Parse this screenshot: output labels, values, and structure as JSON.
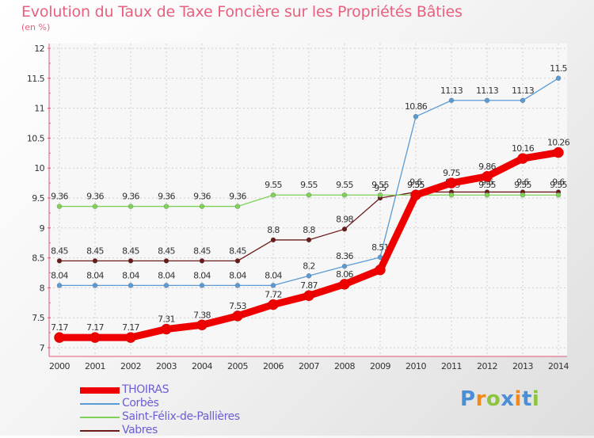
{
  "chart_data": {
    "type": "line",
    "title": "Evolution du Taux de Taxe Foncière sur les Propriétés Bâties",
    "subtitle": "(en %)",
    "ylim": [
      7,
      12
    ],
    "y_ticks": [
      "7",
      "7.5",
      "8",
      "8.5",
      "9",
      "9.5",
      "10",
      "10.5",
      "11",
      "11.5",
      "12"
    ],
    "x": [
      "2000",
      "2001",
      "2002",
      "2003",
      "2004",
      "2005",
      "2006",
      "2007",
      "2008",
      "2009",
      "2010",
      "2011",
      "2012",
      "2013",
      "2014"
    ],
    "grid": true,
    "legend_position": "bottom-left",
    "series": [
      {
        "name": "Vabres",
        "color": "#6b1a1a",
        "values": [
          8.45,
          8.45,
          8.45,
          8.45,
          8.45,
          8.45,
          8.8,
          8.8,
          8.98,
          9.5,
          9.6,
          9.6,
          9.6,
          9.6,
          9.6
        ],
        "labels": [
          "8.45",
          "8.45",
          "8.45",
          "8.45",
          "8.45",
          "8.45",
          "8.8",
          "8.8",
          "8.98",
          "9.5",
          "9.6",
          "9.6",
          "9.6",
          "9.6",
          "9.6"
        ]
      },
      {
        "name": "Saint-Félix-de-Pallières",
        "color": "#7fd157",
        "values": [
          9.36,
          9.36,
          9.36,
          9.36,
          9.36,
          9.36,
          9.55,
          9.55,
          9.55,
          9.55,
          9.55,
          9.55,
          9.55,
          9.55,
          9.55
        ],
        "labels": [
          "9.36",
          "9.36",
          "9.36",
          "9.36",
          "9.36",
          "9.36",
          "9.55",
          "9.55",
          "9.55",
          "9.55",
          "9.55",
          "9.55",
          "9.55",
          "9.55",
          "9.55"
        ]
      },
      {
        "name": "Corbès",
        "color": "#5a9bd5",
        "values": [
          8.04,
          8.04,
          8.04,
          8.04,
          8.04,
          8.04,
          8.04,
          8.2,
          8.36,
          8.51,
          10.86,
          11.13,
          11.13,
          11.13,
          11.5
        ],
        "labels": [
          "8.04",
          "8.04",
          "8.04",
          "8.04",
          "8.04",
          "8.04",
          "8.04",
          "8.2",
          "8.36",
          "8.51",
          "10.86",
          "11.13",
          "11.13",
          "11.13",
          "11.5"
        ]
      },
      {
        "name": "THOIRAS",
        "color": "#ee0000",
        "values": [
          7.17,
          7.17,
          7.17,
          7.31,
          7.38,
          7.53,
          7.72,
          7.87,
          8.06,
          8.3,
          9.55,
          9.75,
          9.86,
          10.16,
          10.26
        ],
        "labels": [
          "7.17",
          "7.17",
          "7.17",
          "7.31",
          "7.38",
          "7.53",
          "7.72",
          "7.87",
          "8.06",
          "",
          "9.55",
          "9.75",
          "9.86",
          "10.16",
          "10.26"
        ]
      }
    ]
  },
  "legend": [
    {
      "name": "THOIRAS",
      "color": "#ee0000"
    },
    {
      "name": "Corbès",
      "color": "#5a9bd5"
    },
    {
      "name": "Saint-Félix-de-Pallières",
      "color": "#7fd157"
    },
    {
      "name": "Vabres",
      "color": "#6b1a1a"
    }
  ],
  "logo": {
    "letters": [
      "P",
      "r",
      "o",
      "x",
      "i",
      "t",
      "i"
    ],
    "colors": [
      "#4a8fd6",
      "#f08a1c",
      "#8cc63e",
      "#4a8fd6",
      "#f08a1c",
      "#4a8fd6",
      "#8cc63e"
    ]
  }
}
